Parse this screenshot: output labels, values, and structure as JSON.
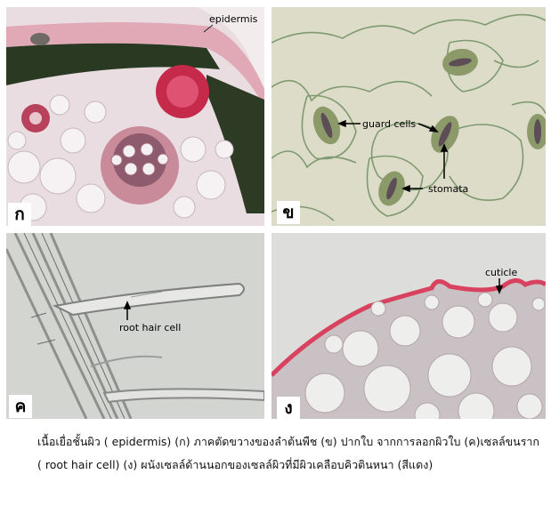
{
  "panels": {
    "a": {
      "tag": "ก",
      "labels": {
        "epidermis": "epidermis"
      }
    },
    "b": {
      "tag": "ข",
      "labels": {
        "guard_cells": "guard cells",
        "stomata": "stomata"
      }
    },
    "c": {
      "tag": "ค",
      "labels": {
        "root_hair": "root hair cell"
      }
    },
    "d": {
      "tag": "ง",
      "labels": {
        "cuticle": "cuticle"
      }
    }
  },
  "caption": "เนื้อเยื่อชั้นผิว ( epidermis)   (ก)  ภาคตัดขวางของลำต้นพืช  (ข) ปากใบ จากการลอกผิวใบ (ค)เซลล์ขนราก ( root   hair   cell)  (ง) ผนังเซลล์ด้านนอกของเซลล์ผิวที่มีผิวเคลือบคิวตินหนา (สีแดง)"
}
